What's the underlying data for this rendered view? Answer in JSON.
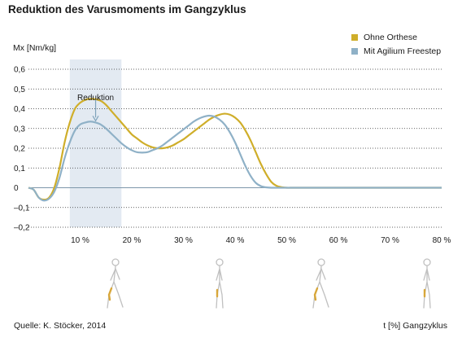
{
  "title": "Reduktion des Varusmoments im Gangzyklus",
  "ylabel": "Mx [Nm/kg]",
  "xlabel": "t [%] Gangzyklus",
  "source": "Quelle: K. Stöcker, 2014",
  "annotation": "Reduktion",
  "colors": {
    "ohne": "#cfae2a",
    "mit": "#8fb1c7",
    "band": "#e3eaf2",
    "grid": "#333333",
    "figure": "#c0c0c0",
    "brace": "#d8a73a"
  },
  "chart_data": {
    "type": "line",
    "title": "Reduktion des Varusmoments im Gangzyklus",
    "xlabel": "t [%] Gangzyklus",
    "ylabel": "Mx [Nm/kg]",
    "xlim": [
      0,
      80
    ],
    "ylim": [
      -0.2,
      0.6
    ],
    "yticks": [
      -0.2,
      -0.1,
      0,
      0.1,
      0.2,
      0.3,
      0.4,
      0.5,
      0.6
    ],
    "ytick_labels": [
      "–0,2",
      "–0,1",
      "0",
      "0,1",
      "0,2",
      "0,3",
      "0,4",
      "0,5",
      "0,6"
    ],
    "xticks": [
      10,
      20,
      30,
      40,
      50,
      60,
      70,
      80
    ],
    "xtick_labels": [
      "10 %",
      "20 %",
      "30 %",
      "40 %",
      "50 %",
      "60 %",
      "70 %",
      "80 %"
    ],
    "grid": "horizontal dotted",
    "legend": "top-right",
    "highlight_band": [
      8,
      18
    ],
    "series": [
      {
        "name": "Ohne Orthese",
        "color": "#cfae2a",
        "x": [
          0,
          1,
          2,
          3,
          4,
          5,
          6,
          7,
          8,
          9,
          10,
          11,
          12,
          13,
          14,
          15,
          16,
          17,
          18,
          19,
          20,
          21,
          22,
          23,
          24,
          25,
          26,
          27,
          28,
          29,
          30,
          31,
          32,
          33,
          34,
          35,
          36,
          37,
          38,
          39,
          40,
          41,
          42,
          43,
          44,
          45,
          46,
          47,
          48,
          49,
          50,
          51,
          52,
          53,
          54,
          55,
          56,
          57,
          58,
          59,
          60,
          61,
          62,
          63,
          64,
          65,
          66,
          67,
          68,
          69,
          70,
          71,
          72,
          73,
          74,
          75,
          76,
          77,
          78,
          79,
          80
        ],
        "values": [
          0,
          -0.01,
          -0.05,
          -0.06,
          -0.05,
          0.0,
          0.1,
          0.23,
          0.33,
          0.4,
          0.43,
          0.445,
          0.45,
          0.448,
          0.44,
          0.42,
          0.39,
          0.36,
          0.33,
          0.3,
          0.27,
          0.25,
          0.23,
          0.215,
          0.205,
          0.2,
          0.2,
          0.205,
          0.215,
          0.23,
          0.245,
          0.265,
          0.285,
          0.305,
          0.325,
          0.345,
          0.36,
          0.37,
          0.375,
          0.37,
          0.355,
          0.33,
          0.29,
          0.24,
          0.18,
          0.12,
          0.07,
          0.03,
          0.01,
          0.003,
          0.0,
          0.0,
          0.0,
          0.0,
          0.0,
          0.0,
          0.0,
          0.0,
          0.0,
          0.0,
          0.0,
          0.0,
          0.0,
          0.0,
          0.0,
          0.0,
          0.0,
          0.0,
          0.0,
          0.0,
          0.0,
          0.0,
          0.0,
          0.0,
          0.0,
          0.0,
          0.0,
          0.0,
          0.0,
          0.0,
          0.0
        ]
      },
      {
        "name": "Mit Agilium Freestep",
        "color": "#8fb1c7",
        "x": [
          0,
          1,
          2,
          3,
          4,
          5,
          6,
          7,
          8,
          9,
          10,
          11,
          12,
          13,
          14,
          15,
          16,
          17,
          18,
          19,
          20,
          21,
          22,
          23,
          24,
          25,
          26,
          27,
          28,
          29,
          30,
          31,
          32,
          33,
          34,
          35,
          36,
          37,
          38,
          39,
          40,
          41,
          42,
          43,
          44,
          45,
          46,
          47,
          48,
          49,
          50,
          51,
          52,
          53,
          54,
          55,
          56,
          57,
          58,
          59,
          60,
          61,
          62,
          63,
          64,
          65,
          66,
          67,
          68,
          69,
          70,
          71,
          72,
          73,
          74,
          75,
          76,
          77,
          78,
          79,
          80
        ],
        "values": [
          0,
          -0.01,
          -0.05,
          -0.065,
          -0.055,
          -0.02,
          0.05,
          0.15,
          0.23,
          0.29,
          0.32,
          0.33,
          0.335,
          0.33,
          0.32,
          0.3,
          0.275,
          0.25,
          0.225,
          0.205,
          0.19,
          0.18,
          0.178,
          0.18,
          0.19,
          0.2,
          0.215,
          0.235,
          0.255,
          0.275,
          0.295,
          0.315,
          0.335,
          0.35,
          0.36,
          0.365,
          0.36,
          0.345,
          0.32,
          0.28,
          0.23,
          0.17,
          0.11,
          0.06,
          0.025,
          0.008,
          0.002,
          0.0,
          0.0,
          0.0,
          0.0,
          0.0,
          0.0,
          0.0,
          0.0,
          0.0,
          0.0,
          0.0,
          0.0,
          0.0,
          0.0,
          0.0,
          0.0,
          0.0,
          0.0,
          0.0,
          0.0,
          0.0,
          0.0,
          0.0,
          0.0,
          0.0,
          0.0,
          0.0,
          0.0,
          0.0,
          0.0,
          0.0,
          0.0,
          0.0,
          0.0
        ]
      }
    ]
  }
}
